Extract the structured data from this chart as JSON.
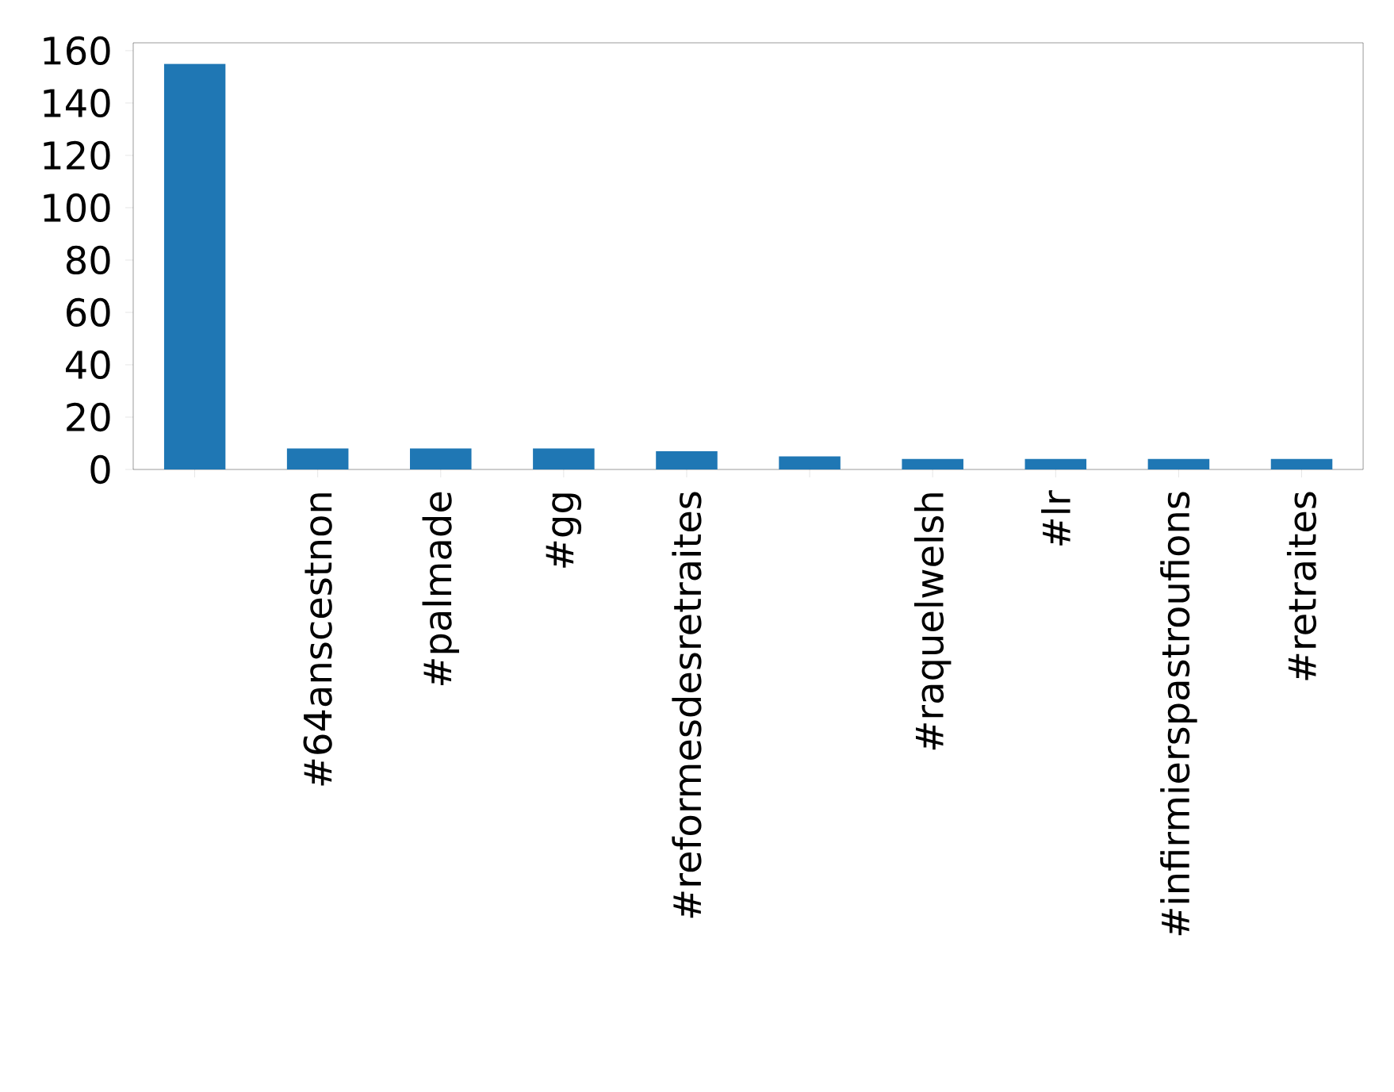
{
  "chart_data": {
    "type": "bar",
    "categories": [
      null,
      "#64anscestnon",
      "#palmade",
      "#gg",
      "#reformesdesretraites",
      null,
      "#raquelwelsh",
      "#lr",
      "#infirmierspastroufions",
      "#retraites"
    ],
    "values": [
      155,
      8,
      8,
      8,
      7,
      5,
      4,
      4,
      4,
      4
    ],
    "color": "#1f77b4",
    "ylim": [
      0,
      163
    ],
    "yticks": [
      0,
      20,
      40,
      60,
      80,
      100,
      120,
      140,
      160
    ],
    "grid": false
  }
}
